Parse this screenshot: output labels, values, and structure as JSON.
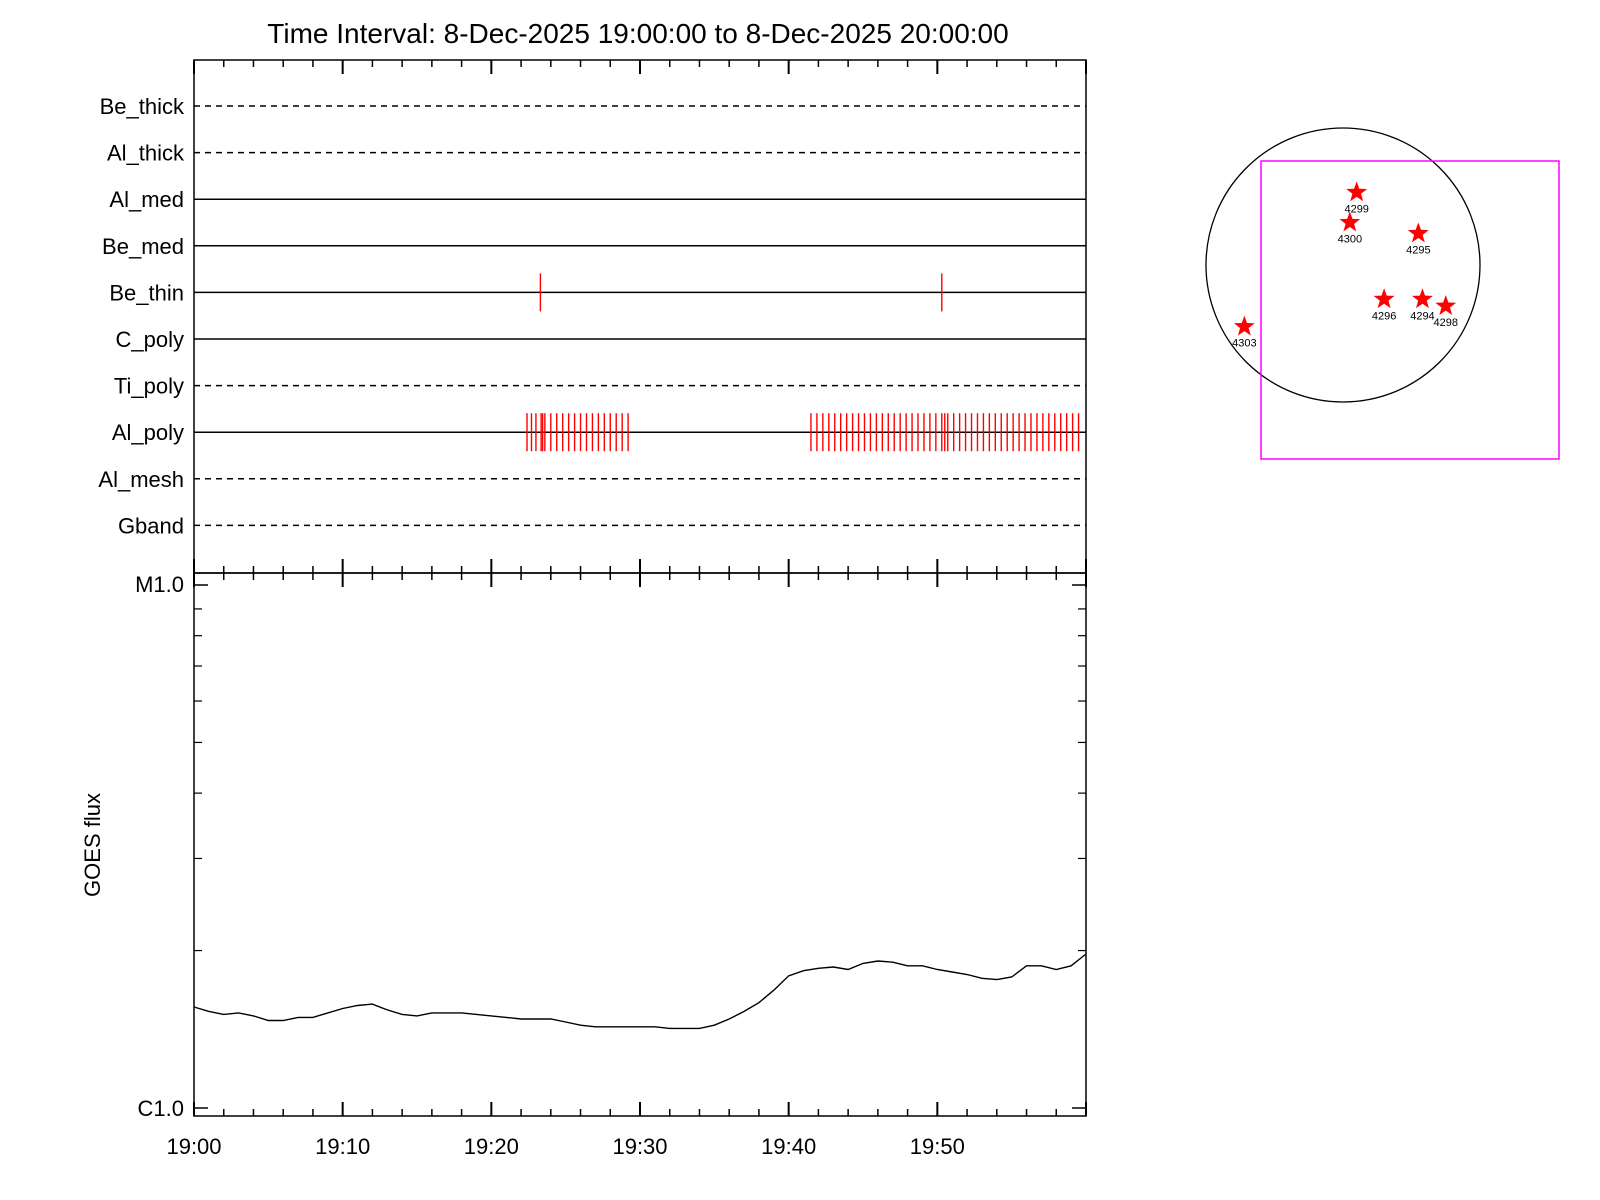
{
  "chart_data": [
    {
      "type": "event-timeline",
      "title": "Time Interval:  8-Dec-2025 19:00:00 to  8-Dec-2025 20:00:00",
      "x_unit": "minutes after 19:00",
      "x_range": [
        0,
        60
      ],
      "channels": [
        {
          "name": "Be_thick",
          "style": "dashed",
          "events": []
        },
        {
          "name": "Al_thick",
          "style": "dashed",
          "events": []
        },
        {
          "name": "Al_med",
          "style": "solid",
          "events": []
        },
        {
          "name": "Be_med",
          "style": "solid",
          "events": []
        },
        {
          "name": "Be_thin",
          "style": "solid",
          "events": [
            23.3,
            50.3
          ]
        },
        {
          "name": "C_poly",
          "style": "solid",
          "events": []
        },
        {
          "name": "Ti_poly",
          "style": "dashed",
          "events": []
        },
        {
          "name": "Al_poly",
          "style": "solid",
          "events": [
            22.4,
            22.7,
            23.0,
            23.35,
            23.45,
            23.6,
            24.0,
            24.4,
            24.8,
            25.2,
            25.6,
            26.0,
            26.4,
            26.8,
            27.2,
            27.6,
            28.0,
            28.4,
            28.8,
            29.2,
            41.5,
            41.9,
            42.3,
            42.7,
            43.1,
            43.5,
            43.9,
            44.3,
            44.7,
            45.1,
            45.5,
            45.9,
            46.3,
            46.7,
            47.1,
            47.5,
            47.9,
            48.3,
            48.7,
            49.1,
            49.5,
            49.9,
            50.3,
            50.5,
            50.7,
            51.1,
            51.5,
            51.9,
            52.3,
            52.7,
            53.1,
            53.5,
            53.9,
            54.3,
            54.7,
            55.1,
            55.5,
            55.9,
            56.3,
            56.7,
            57.1,
            57.5,
            57.9,
            58.3,
            58.7,
            59.1,
            59.5
          ]
        },
        {
          "name": "Al_mesh",
          "style": "dashed",
          "events": []
        },
        {
          "name": "Gband",
          "style": "dashed",
          "events": []
        }
      ]
    },
    {
      "type": "line",
      "ylabel": "GOES flux",
      "y_scale": "log",
      "ytick_labels": [
        "M1.0",
        "C1.0"
      ],
      "xtick_labels": [
        "19:00",
        "19:10",
        "19:20",
        "19:30",
        "19:40",
        "19:50"
      ],
      "x_unit": "minutes after 19:00",
      "x_range": [
        0,
        60
      ],
      "y_range": [
        1e-06,
        1e-05
      ],
      "series": [
        {
          "x": [
            0,
            1,
            2,
            3,
            4,
            5,
            6,
            7,
            8,
            9,
            10,
            11,
            12,
            13,
            14,
            15,
            16,
            17,
            18,
            19,
            20,
            21,
            22,
            23,
            24,
            25,
            26,
            27,
            28,
            29,
            30,
            31,
            32,
            33,
            34,
            35,
            36,
            37,
            38,
            39,
            40,
            41,
            42,
            43,
            44,
            45,
            46,
            47,
            48,
            49,
            50,
            51,
            52,
            53,
            54,
            55,
            56,
            57,
            58,
            59,
            60
          ],
          "y": [
            1.56e-06,
            1.53e-06,
            1.51e-06,
            1.52e-06,
            1.5e-06,
            1.47e-06,
            1.47e-06,
            1.49e-06,
            1.49e-06,
            1.52e-06,
            1.55e-06,
            1.57e-06,
            1.58e-06,
            1.54e-06,
            1.51e-06,
            1.5e-06,
            1.52e-06,
            1.52e-06,
            1.52e-06,
            1.51e-06,
            1.5e-06,
            1.49e-06,
            1.48e-06,
            1.48e-06,
            1.48e-06,
            1.46e-06,
            1.44e-06,
            1.43e-06,
            1.43e-06,
            1.43e-06,
            1.43e-06,
            1.43e-06,
            1.42e-06,
            1.42e-06,
            1.42e-06,
            1.44e-06,
            1.48e-06,
            1.53e-06,
            1.59e-06,
            1.68e-06,
            1.79e-06,
            1.83e-06,
            1.85e-06,
            1.86e-06,
            1.84e-06,
            1.89e-06,
            1.91e-06,
            1.9e-06,
            1.87e-06,
            1.87e-06,
            1.84e-06,
            1.82e-06,
            1.8e-06,
            1.77e-06,
            1.76e-06,
            1.78e-06,
            1.87e-06,
            1.87e-06,
            1.84e-06,
            1.87e-06,
            1.97e-06
          ]
        }
      ]
    },
    {
      "type": "scatter",
      "description": "solar disk map",
      "disk_color": "#000000",
      "fov_color": "#ff00ff",
      "marker_color": "#ff0000",
      "marker": "star-icon",
      "points": [
        {
          "label": "4299",
          "x": 0.1,
          "y": 0.53
        },
        {
          "label": "4300",
          "x": 0.05,
          "y": 0.31
        },
        {
          "label": "4295",
          "x": 0.55,
          "y": 0.23
        },
        {
          "label": "4296",
          "x": 0.3,
          "y": -0.25
        },
        {
          "label": "4294",
          "x": 0.58,
          "y": -0.25
        },
        {
          "label": "4298",
          "x": 0.75,
          "y": -0.3
        },
        {
          "label": "4303",
          "x": -0.72,
          "y": -0.45
        }
      ]
    }
  ]
}
